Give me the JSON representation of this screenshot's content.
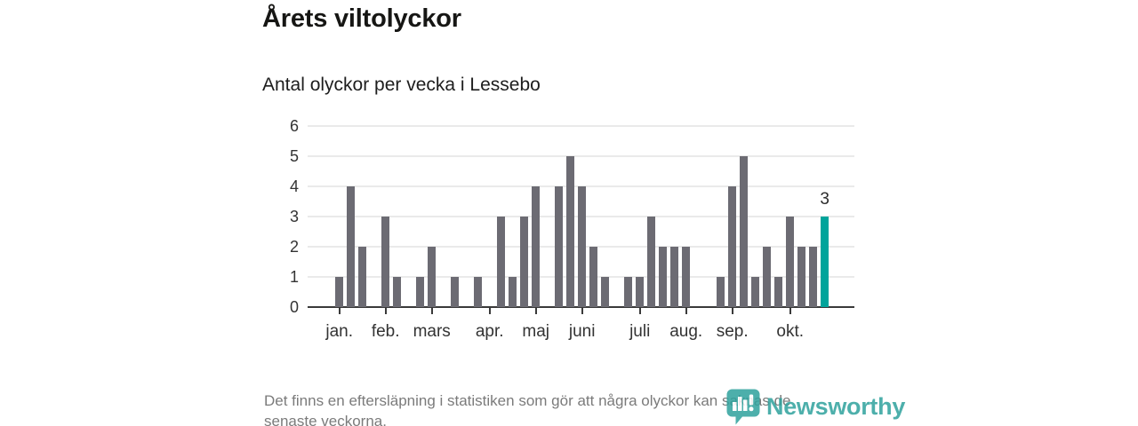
{
  "header": {
    "title": "Årets viltolyckor",
    "subtitle": "Antal olyckor per vecka i Lessebo"
  },
  "chart_data": {
    "type": "bar",
    "title": "Årets viltolyckor",
    "subtitle": "Antal olyckor per vecka i Lessebo",
    "xlabel": "",
    "ylabel": "",
    "x_unit": "vecka",
    "n_weeks": 43,
    "values": [
      1,
      4,
      2,
      0,
      3,
      1,
      0,
      1,
      2,
      0,
      1,
      0,
      1,
      0,
      3,
      1,
      3,
      4,
      0,
      4,
      5,
      4,
      2,
      1,
      0,
      1,
      1,
      3,
      2,
      2,
      2,
      0,
      0,
      1,
      4,
      5,
      1,
      2,
      1,
      3,
      2,
      2,
      3
    ],
    "highlight_last_bar": true,
    "last_bar_label": "3",
    "y_ticks": [
      0,
      1,
      2,
      3,
      4,
      5,
      6
    ],
    "ylim": [
      0,
      6
    ],
    "grid": true,
    "legend_position": "none",
    "month_ticks": [
      {
        "label": "jan.",
        "week": 1
      },
      {
        "label": "feb.",
        "week": 5
      },
      {
        "label": "mars",
        "week": 9
      },
      {
        "label": "apr.",
        "week": 14
      },
      {
        "label": "maj",
        "week": 18
      },
      {
        "label": "juni",
        "week": 22
      },
      {
        "label": "juli",
        "week": 27
      },
      {
        "label": "aug.",
        "week": 31
      },
      {
        "label": "sep.",
        "week": 35
      },
      {
        "label": "okt.",
        "week": 40
      }
    ],
    "colors": {
      "bar": "#6c6b73",
      "highlight": "#00a49b",
      "grid": "#eaeaea",
      "axis": "#3a3a3a",
      "tick_text": "#333333",
      "annotation_text": "#2b2b2b"
    }
  },
  "footer": {
    "note": "Det finns en eftersläpning i statistiken som gör att några olyckor kan saknas de\nsenaste veckorna."
  },
  "branding": {
    "wordmark": "Newsworthy",
    "logo_color": "#2fa29d"
  }
}
